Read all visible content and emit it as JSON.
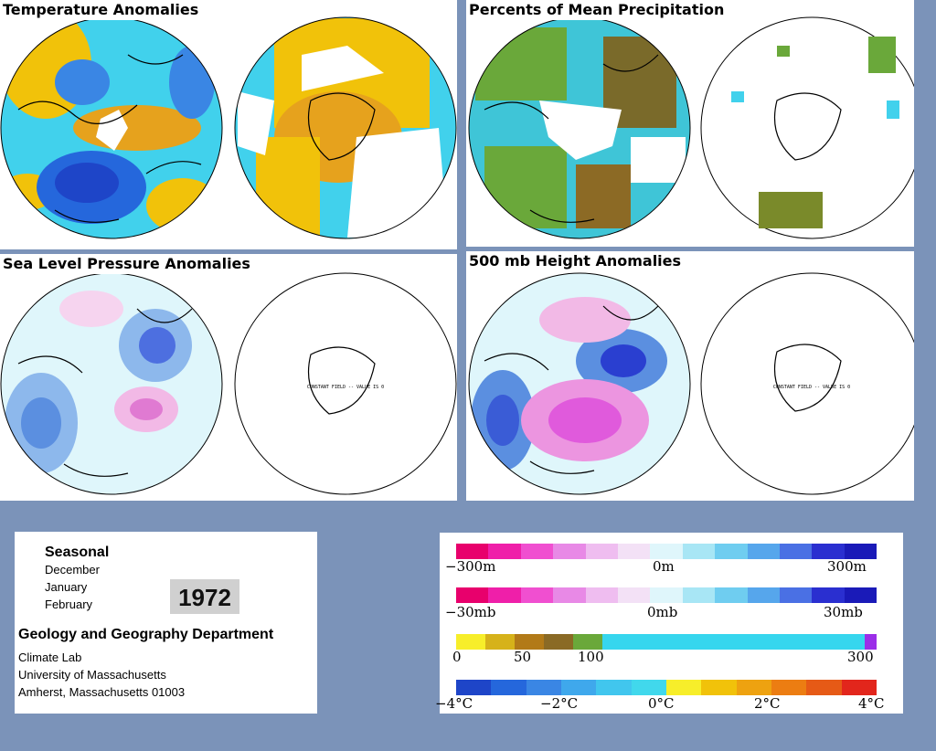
{
  "panels": {
    "temperature": {
      "title": "Temperature Anomalies"
    },
    "precipitation": {
      "title": "Percents of Mean Precipitation"
    },
    "slp": {
      "title": "Sea Level Pressure Anomalies"
    },
    "height500": {
      "title": "500 mb Height Anomalies"
    },
    "constant_field_note": "CONSTANT FIELD -- VALUE IS 0"
  },
  "info": {
    "season": "Seasonal",
    "months": [
      "December",
      "January",
      "February"
    ],
    "year": "1972",
    "department": "Geology and Geography Department",
    "lines": [
      "Climate Lab",
      "University of Massachusetts",
      "Amherst, Massachusetts 01003"
    ]
  },
  "legend": {
    "height": {
      "labels": [
        "−300m",
        "0m",
        "300m"
      ]
    },
    "pressure": {
      "labels": [
        "−30mb",
        "0mb",
        "30mb"
      ]
    },
    "precip": {
      "labels": [
        "0",
        "50",
        "100",
        "300"
      ]
    },
    "temp": {
      "labels": [
        "−4°C",
        "−2°C",
        "0°C",
        "2°C",
        "4°C"
      ]
    }
  },
  "colors": {
    "background": "#7b93b9",
    "cold": "#1e5bd8",
    "cyan": "#36d6ee",
    "yellow": "#f2cc00",
    "orange": "#e7a21a",
    "magenta": "#e05adc",
    "blue_dark": "#2a2fd0"
  }
}
